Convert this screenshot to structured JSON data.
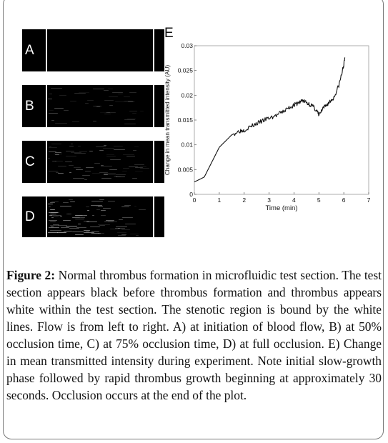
{
  "panels": [
    {
      "label": "A",
      "intensity": 0.0
    },
    {
      "label": "B",
      "intensity": 0.5
    },
    {
      "label": "C",
      "intensity": 0.75
    },
    {
      "label": "D",
      "intensity": 1.0
    }
  ],
  "chart_data": {
    "type": "line",
    "panel_label": "E",
    "xlabel": "Time (min)",
    "ylabel": "Change in mean transmitted intensity (AU)",
    "xlim": [
      0,
      7
    ],
    "ylim": [
      0,
      0.03
    ],
    "xticks": [
      "0",
      "1",
      "2",
      "3",
      "4",
      "5",
      "6",
      "7"
    ],
    "yticks": [
      "0",
      "0.005",
      "0.01",
      "0.015",
      "0.02",
      "0.025",
      "0.03"
    ],
    "grid": false,
    "series": [
      {
        "x": [
          0.0,
          0.2,
          0.4,
          0.6,
          0.8,
          1.0,
          1.2,
          1.5,
          1.8,
          2.0,
          2.3,
          2.6,
          2.9,
          3.2,
          3.5,
          3.8,
          4.0,
          4.2,
          4.35,
          4.5,
          4.7,
          4.9,
          5.0,
          5.2,
          5.4,
          5.6,
          5.8,
          5.95,
          6.05
        ],
        "y": [
          0.0025,
          0.003,
          0.0035,
          0.0055,
          0.0075,
          0.0095,
          0.0105,
          0.012,
          0.0128,
          0.013,
          0.0138,
          0.0145,
          0.0152,
          0.0157,
          0.0165,
          0.0175,
          0.018,
          0.0185,
          0.019,
          0.0185,
          0.018,
          0.017,
          0.016,
          0.0175,
          0.0185,
          0.0195,
          0.022,
          0.025,
          0.0275
        ]
      }
    ]
  },
  "caption": {
    "figure_label": "Figure 2:",
    "text": " Normal thrombus formation in microfluidic test section. The test section appears black before thrombus formation and thrombus appears white within the test section. The stenotic region is bound by the white lines. Flow is from left to right. A) at initiation of blood flow, B) at 50% occlusion time, C) at 75% occlusion time, D) at full occlusion. E) Change in mean transmitted intensity during experiment. Note initial slow-growth phase followed by rapid thrombus growth beginning at approximately 30 seconds. Occlusion occurs at the end of the plot."
  }
}
